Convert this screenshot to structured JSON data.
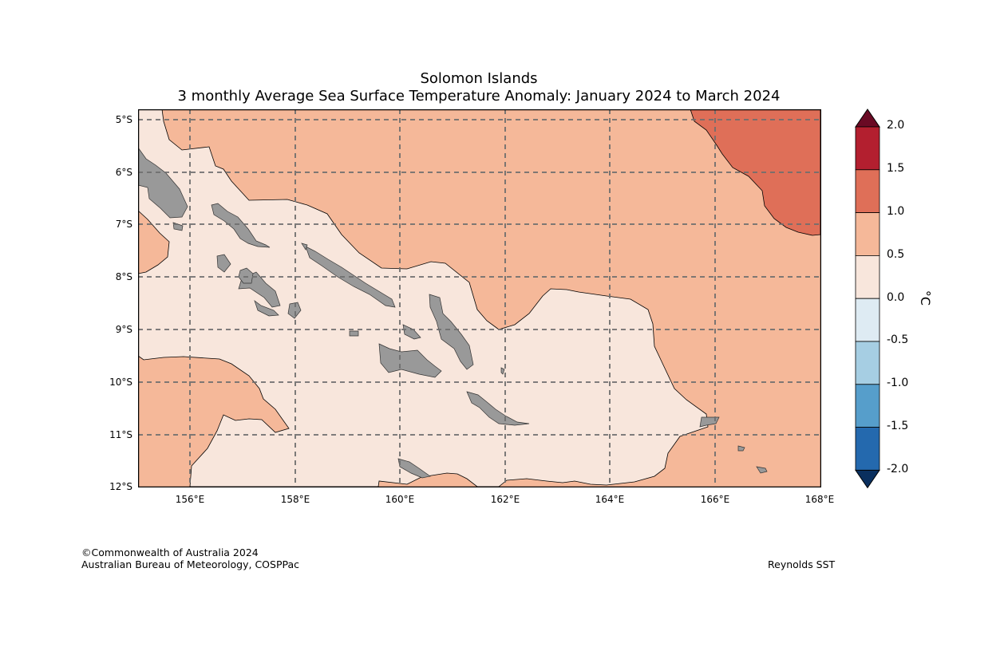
{
  "title": {
    "line1": "Solomon Islands",
    "line2": "3 monthly Average Sea Surface Temperature Anomaly: January 2024 to March 2024"
  },
  "lat_ticks": [
    "5°S",
    "6°S",
    "7°S",
    "8°S",
    "9°S",
    "10°S",
    "11°S",
    "12°S"
  ],
  "lon_ticks": [
    "156°E",
    "158°E",
    "160°E",
    "162°E",
    "164°E",
    "166°E",
    "168°E"
  ],
  "colorbar": {
    "unit": "°C",
    "labels": [
      "2.0",
      "1.5",
      "1.0",
      "0.5",
      "0.0",
      "-0.5",
      "-1.0",
      "-1.5",
      "-2.0"
    ],
    "colors": [
      "#b31f2f",
      "#df6f58",
      "#f5b899",
      "#f8e6dc",
      "#deebf3",
      "#a6cee3",
      "#569ecb",
      "#2469ae"
    ],
    "over_color": "#6a0a24",
    "under_color": "#0a2f5e"
  },
  "map_colors": {
    "land": "#999999",
    "anomaly_0_05": "#f8e6dc",
    "anomaly_05_10": "#f5b899",
    "anomaly_10_15": "#df6f58"
  },
  "footer": {
    "copyright": "©Commonwealth of Australia 2024",
    "agency": "Australian Bureau of Meteorology, COSPPac",
    "source": "Reynolds SST"
  }
}
